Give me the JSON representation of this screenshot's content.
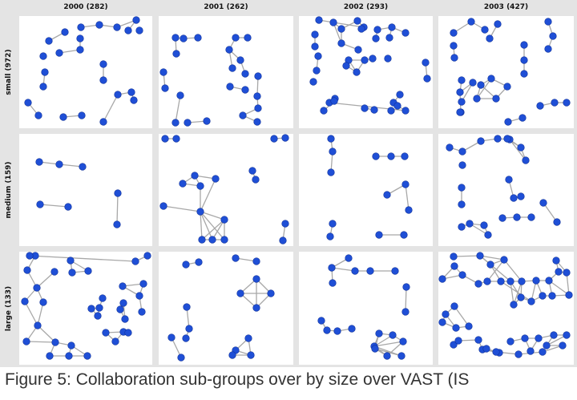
{
  "columns": [
    "2000 (282)",
    "2001 (262)",
    "2002 (293)",
    "2003 (427)"
  ],
  "rows": [
    "small (972)",
    "medium (159)",
    "large (133)"
  ],
  "caption": "Figure 5: Collaboration sub-groups over by size over VAST (IS",
  "colors": {
    "node": "#1f4fd6",
    "node_stroke": "#0e2f99",
    "edge": "#a8a8a8",
    "cell_bg": "#ffffff",
    "frame_bg": "#e4e4e4"
  }
}
